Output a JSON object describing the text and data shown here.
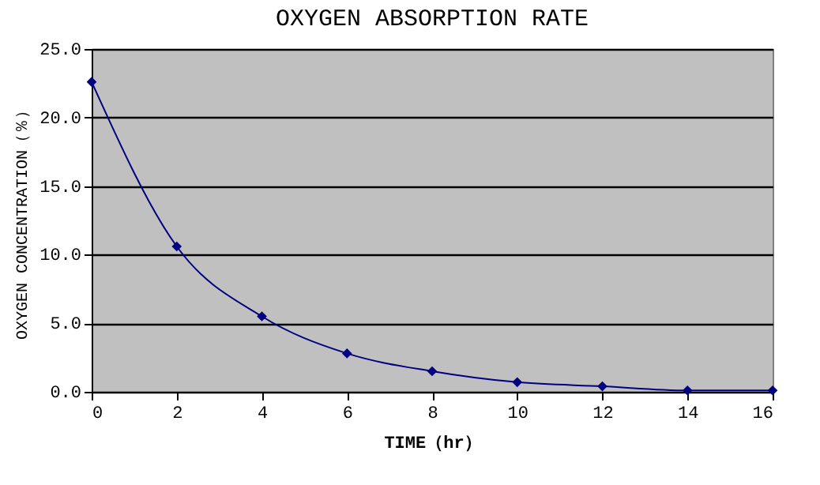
{
  "chart_data": {
    "type": "line",
    "title": "OXYGEN ABSORPTION RATE",
    "xlabel": "TIME（hr）",
    "ylabel": "OXYGEN CONCENTRATION（％）",
    "x": [
      0,
      2,
      4,
      6,
      8,
      10,
      12,
      14,
      16
    ],
    "series": [
      {
        "color": "#000080",
        "values": [
          22.6,
          10.6,
          5.5,
          2.8,
          1.5,
          0.7,
          0.4,
          0.1,
          0.1
        ]
      }
    ],
    "xlim": [
      0,
      16
    ],
    "xticks": [
      0,
      2,
      4,
      6,
      8,
      10,
      12,
      14,
      16
    ],
    "ylim": [
      0,
      25
    ],
    "yticks": [
      {
        "value": 0,
        "label": "0.0"
      },
      {
        "value": 5,
        "label": "5.0"
      },
      {
        "value": 10,
        "label": "10.0"
      },
      {
        "value": 15,
        "label": "15.0"
      },
      {
        "value": 20,
        "label": "20.0"
      },
      {
        "value": 25,
        "label": "25.0"
      }
    ],
    "grid": "y",
    "marker": "diamond",
    "line_style": "solid",
    "legend": false
  }
}
